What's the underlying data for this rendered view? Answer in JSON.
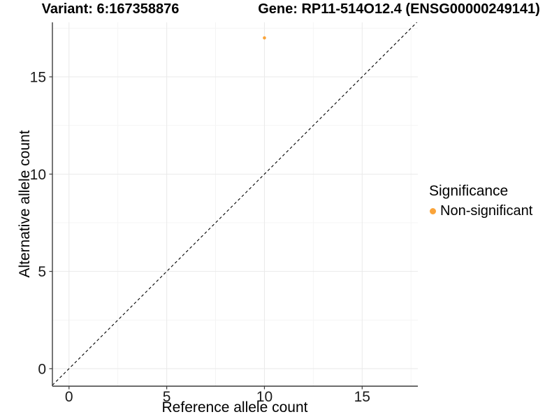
{
  "chart_data": {
    "type": "scatter",
    "titles": {
      "variant": "Variant: 6:167358876",
      "gene": "Gene: RP11-514O12.4 (ENSG00000249141)"
    },
    "xlabel": "Reference allele count",
    "ylabel": "Alternative allele count",
    "xlim": [
      -0.85,
      17.85
    ],
    "ylim": [
      -0.9,
      17.8
    ],
    "x_ticks": [
      0,
      5,
      10,
      15
    ],
    "y_ticks": [
      0,
      5,
      10,
      15
    ],
    "x_minor_gridlines": [
      2.5,
      7.5,
      12.5,
      17.5
    ],
    "y_minor_gridlines": [
      2.5,
      7.5,
      12.5,
      17.5
    ],
    "grid": "on",
    "reference_line": {
      "slope": 1,
      "intercept": 0,
      "style": "dashed",
      "color": "#000000"
    },
    "series": [
      {
        "name": "Non-significant",
        "color": "#FAA43A",
        "points": [
          {
            "x": 10,
            "y": 17
          }
        ]
      }
    ],
    "legend": {
      "title": "Significance",
      "position": "right",
      "entries": [
        {
          "label": "Non-significant",
          "color": "#FAA43A"
        }
      ]
    },
    "colors": {
      "grid_major": "#E9E9E9",
      "grid_minor": "#F4F4F4",
      "axis": "#3C3C3C",
      "tick_text": "#1A1A1A"
    }
  }
}
